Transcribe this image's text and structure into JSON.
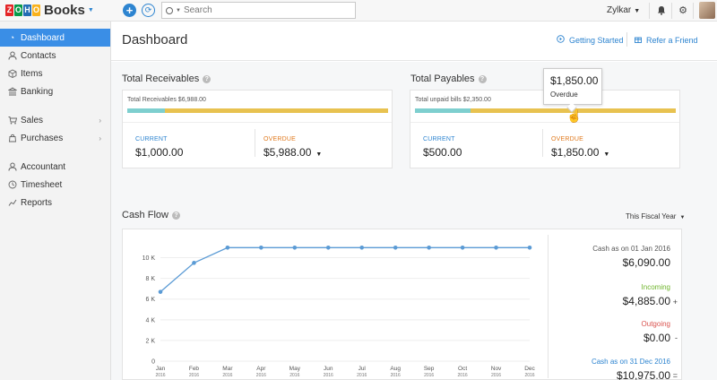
{
  "header": {
    "logo_letters": [
      "Z",
      "O",
      "H",
      "O"
    ],
    "logo_colors": [
      "#e42527",
      "#089949",
      "#226db4",
      "#f9b21d"
    ],
    "logo_text": "Books",
    "search_placeholder": "Search",
    "org_name": "Zylkar",
    "icons": [
      "plus-icon",
      "sync-icon",
      "search-icon",
      "bell-icon",
      "gear-icon",
      "help-icon",
      "avatar"
    ]
  },
  "sidebar": {
    "items": [
      {
        "label": "Dashboard",
        "icon": "dashboard-icon",
        "active": true
      },
      {
        "label": "Contacts",
        "icon": "contacts-icon"
      },
      {
        "label": "Items",
        "icon": "items-icon"
      },
      {
        "label": "Banking",
        "icon": "bank-icon"
      },
      {
        "label": "Sales",
        "icon": "cart-icon",
        "has_submenu": true
      },
      {
        "label": "Purchases",
        "icon": "purchases-icon",
        "has_submenu": true
      },
      {
        "label": "Accountant",
        "icon": "accountant-icon"
      },
      {
        "label": "Timesheet",
        "icon": "timesheet-icon"
      },
      {
        "label": "Reports",
        "icon": "reports-icon"
      }
    ]
  },
  "page": {
    "title": "Dashboard",
    "getting_started": "Getting Started",
    "refer_friend": "Refer a Friend"
  },
  "receivables": {
    "title": "Total Receivables",
    "bar_label": "Total Receivables $6,988.00",
    "current_fraction": 0.143,
    "current_label": "CURRENT",
    "current_value": "$1,000.00",
    "overdue_label": "OVERDUE",
    "overdue_value": "$5,988.00"
  },
  "payables": {
    "title": "Total Payables",
    "bar_label": "Total unpaid bills $2,350.00",
    "current_fraction": 0.213,
    "current_label": "CURRENT",
    "current_value": "$500.00",
    "overdue_label": "OVERDUE",
    "overdue_value": "$1,850.00",
    "tooltip_value": "$1,850.00",
    "tooltip_label": "Overdue"
  },
  "cashflow": {
    "title": "Cash Flow",
    "period": "This Fiscal Year",
    "opening_label": "Cash as on 01 Jan 2016",
    "opening_value": "$6,090.00",
    "incoming_label": "Incoming",
    "incoming_value": "$4,885.00",
    "incoming_sign": "+",
    "outgoing_label": "Outgoing",
    "outgoing_value": "$0.00",
    "outgoing_sign": "-",
    "closing_label": "Cash as on 31 Dec 2016",
    "closing_value": "$10,975.00",
    "closing_sign": "=",
    "colors": {
      "incoming": "#6fb52c",
      "outgoing": "#d9534f",
      "closing": "#2d84d0",
      "line": "#5b9bd5"
    }
  },
  "chart_data": {
    "type": "line",
    "categories": [
      "Jan 2016",
      "Feb 2016",
      "Mar 2016",
      "Apr 2016",
      "May 2016",
      "Jun 2016",
      "Jul 2016",
      "Aug 2016",
      "Sep 2016",
      "Oct 2016",
      "Nov 2016",
      "Dec 2016"
    ],
    "tick_months": [
      "Jan",
      "Feb",
      "Mar",
      "Apr",
      "May",
      "Jun",
      "Jul",
      "Aug",
      "Sep",
      "Oct",
      "Nov",
      "Dec"
    ],
    "tick_year": "2016",
    "y_ticks": [
      "0",
      "2 K",
      "4 K",
      "6 K",
      "8 K",
      "10 K"
    ],
    "ylim": [
      0,
      11000
    ],
    "series": [
      {
        "values": [
          6700,
          9500,
          10975,
          10975,
          10975,
          10975,
          10975,
          10975,
          10975,
          10975,
          10975,
          10975
        ]
      }
    ],
    "grid": true
  }
}
